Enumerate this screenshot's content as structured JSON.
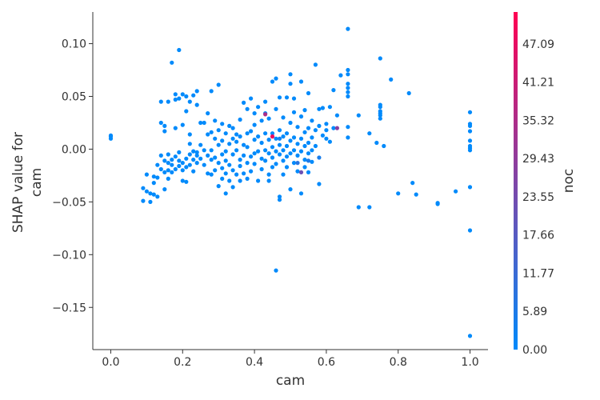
{
  "chart_data": {
    "type": "scatter",
    "title": "",
    "xlabel": "cam",
    "ylabel": "SHAP value for\ncam",
    "xlim": [
      -0.05,
      1.05
    ],
    "ylim": [
      -0.19,
      0.13
    ],
    "xticks": [
      0.0,
      0.2,
      0.4,
      0.6,
      0.8,
      1.0
    ],
    "xtick_labels": [
      "0.0",
      "0.2",
      "0.4",
      "0.6",
      "0.8",
      "1.0"
    ],
    "yticks": [
      0.1,
      0.05,
      0.0,
      -0.05,
      -0.1,
      -0.15
    ],
    "ytick_labels": [
      "0.10",
      "0.05",
      "0.00",
      "−0.05",
      "−0.10",
      "−0.15"
    ],
    "colorbar": {
      "label": "noc",
      "range": [
        0.0,
        52.0
      ],
      "ticks": [
        0.0,
        5.89,
        11.77,
        17.66,
        23.55,
        29.43,
        35.32,
        41.21,
        47.09
      ],
      "tick_labels": [
        "0.00",
        "5.89",
        "11.77",
        "17.66",
        "23.55",
        "29.43",
        "35.32",
        "41.21",
        "47.09"
      ],
      "color_low": "#008afb",
      "color_high": "#ff0052"
    },
    "grid": false,
    "points": [
      [
        0.0,
        0.013,
        0
      ],
      [
        0.0,
        0.01,
        0
      ],
      [
        0.0,
        0.012,
        0
      ],
      [
        0.09,
        -0.049,
        0
      ],
      [
        0.09,
        -0.037,
        0
      ],
      [
        0.1,
        -0.04,
        0
      ],
      [
        0.1,
        -0.024,
        0
      ],
      [
        0.11,
        -0.042,
        0
      ],
      [
        0.11,
        -0.05,
        0
      ],
      [
        0.12,
        -0.043,
        0
      ],
      [
        0.12,
        -0.032,
        0
      ],
      [
        0.12,
        -0.026,
        0
      ],
      [
        0.13,
        -0.045,
        0
      ],
      [
        0.13,
        -0.027,
        0
      ],
      [
        0.13,
        -0.015,
        0
      ],
      [
        0.14,
        0.045,
        0
      ],
      [
        0.14,
        0.025,
        0
      ],
      [
        0.14,
        -0.006,
        0
      ],
      [
        0.14,
        -0.019,
        0
      ],
      [
        0.15,
        -0.038,
        0
      ],
      [
        0.15,
        -0.022,
        0
      ],
      [
        0.15,
        -0.011,
        0
      ],
      [
        0.15,
        0.017,
        0
      ],
      [
        0.15,
        0.022,
        0
      ],
      [
        0.16,
        -0.013,
        0
      ],
      [
        0.16,
        -0.02,
        0
      ],
      [
        0.16,
        -0.028,
        0
      ],
      [
        0.16,
        0.045,
        0
      ],
      [
        0.16,
        -0.005,
        0
      ],
      [
        0.17,
        -0.015,
        0
      ],
      [
        0.17,
        -0.022,
        0
      ],
      [
        0.17,
        -0.01,
        0
      ],
      [
        0.17,
        0.082,
        0
      ],
      [
        0.18,
        0.052,
        0
      ],
      [
        0.18,
        0.047,
        0
      ],
      [
        0.18,
        0.02,
        0
      ],
      [
        0.18,
        -0.007,
        0
      ],
      [
        0.18,
        -0.019,
        0
      ],
      [
        0.19,
        0.094,
        0
      ],
      [
        0.19,
        -0.003,
        0
      ],
      [
        0.19,
        -0.016,
        0
      ],
      [
        0.19,
        0.048,
        0
      ],
      [
        0.19,
        -0.011,
        0
      ],
      [
        0.2,
        0.052,
        0
      ],
      [
        0.2,
        0.023,
        0
      ],
      [
        0.2,
        -0.013,
        0
      ],
      [
        0.2,
        -0.03,
        0
      ],
      [
        0.2,
        -0.02,
        0
      ],
      [
        0.21,
        0.036,
        0
      ],
      [
        0.21,
        -0.009,
        0
      ],
      [
        0.21,
        -0.017,
        0
      ],
      [
        0.21,
        -0.031,
        0
      ],
      [
        0.21,
        0.05,
        0
      ],
      [
        0.22,
        0.014,
        0
      ],
      [
        0.22,
        0.005,
        0
      ],
      [
        0.22,
        -0.005,
        0
      ],
      [
        0.22,
        -0.015,
        0
      ],
      [
        0.22,
        0.045,
        0
      ],
      [
        0.23,
        0.051,
        0
      ],
      [
        0.23,
        -0.002,
        0
      ],
      [
        0.23,
        -0.021,
        0
      ],
      [
        0.23,
        -0.01,
        0
      ],
      [
        0.24,
        0.055,
        0
      ],
      [
        0.24,
        0.042,
        0
      ],
      [
        0.24,
        -0.006,
        0
      ],
      [
        0.24,
        -0.013,
        0
      ],
      [
        0.24,
        -0.003,
        0
      ],
      [
        0.25,
        0.025,
        0
      ],
      [
        0.25,
        0.004,
        0
      ],
      [
        0.25,
        -0.009,
        0
      ],
      [
        0.26,
        -0.015,
        0
      ],
      [
        0.26,
        0.025,
        0
      ],
      [
        0.26,
        -0.001,
        0
      ],
      [
        0.27,
        0.034,
        0
      ],
      [
        0.27,
        0.014,
        0
      ],
      [
        0.27,
        -0.023,
        0
      ],
      [
        0.27,
        -0.006,
        0
      ],
      [
        0.28,
        0.055,
        0
      ],
      [
        0.28,
        0.016,
        0
      ],
      [
        0.28,
        -0.01,
        0
      ],
      [
        0.28,
        -0.001,
        0
      ],
      [
        0.28,
        -0.024,
        0
      ],
      [
        0.29,
        0.027,
        0
      ],
      [
        0.29,
        0.01,
        0
      ],
      [
        0.29,
        -0.008,
        0
      ],
      [
        0.29,
        -0.02,
        0
      ],
      [
        0.3,
        0.061,
        0
      ],
      [
        0.3,
        0.018,
        0
      ],
      [
        0.3,
        0.004,
        0
      ],
      [
        0.3,
        -0.013,
        0
      ],
      [
        0.3,
        -0.035,
        0
      ],
      [
        0.31,
        0.024,
        0
      ],
      [
        0.31,
        0.008,
        0
      ],
      [
        0.31,
        -0.005,
        0
      ],
      [
        0.31,
        -0.018,
        0
      ],
      [
        0.31,
        -0.028,
        0
      ],
      [
        0.32,
        0.015,
        0
      ],
      [
        0.32,
        -0.002,
        0
      ],
      [
        0.32,
        -0.011,
        0
      ],
      [
        0.32,
        -0.023,
        0
      ],
      [
        0.32,
        -0.042,
        0
      ],
      [
        0.33,
        0.022,
        0
      ],
      [
        0.33,
        0.005,
        0
      ],
      [
        0.33,
        -0.015,
        0
      ],
      [
        0.33,
        -0.03,
        0
      ],
      [
        0.34,
        0.02,
        0
      ],
      [
        0.34,
        0.01,
        0
      ],
      [
        0.34,
        -0.005,
        0
      ],
      [
        0.34,
        -0.02,
        0
      ],
      [
        0.34,
        -0.036,
        0
      ],
      [
        0.35,
        0.014,
        0
      ],
      [
        0.35,
        -0.001,
        0
      ],
      [
        0.35,
        -0.024,
        0
      ],
      [
        0.35,
        0.007,
        0
      ],
      [
        0.36,
        0.028,
        0
      ],
      [
        0.36,
        0.012,
        0
      ],
      [
        0.36,
        -0.01,
        0
      ],
      [
        0.36,
        -0.016,
        0
      ],
      [
        0.36,
        -0.03,
        0
      ],
      [
        0.37,
        0.044,
        0
      ],
      [
        0.37,
        0.004,
        0
      ],
      [
        0.37,
        -0.006,
        0
      ],
      [
        0.37,
        -0.023,
        0
      ],
      [
        0.38,
        0.015,
        0
      ],
      [
        0.38,
        0.002,
        0
      ],
      [
        0.38,
        -0.013,
        0
      ],
      [
        0.38,
        -0.028,
        0
      ],
      [
        0.38,
        0.038,
        0
      ],
      [
        0.39,
        0.048,
        0
      ],
      [
        0.39,
        0.017,
        0
      ],
      [
        0.39,
        -0.007,
        0
      ],
      [
        0.39,
        -0.021,
        0
      ],
      [
        0.4,
        0.023,
        0
      ],
      [
        0.4,
        0.009,
        0
      ],
      [
        0.4,
        -0.004,
        0
      ],
      [
        0.4,
        -0.014,
        0
      ],
      [
        0.4,
        0.034,
        0
      ],
      [
        0.41,
        0.04,
        0
      ],
      [
        0.41,
        0.012,
        0
      ],
      [
        0.41,
        -0.002,
        0
      ],
      [
        0.41,
        -0.03,
        0
      ],
      [
        0.42,
        0.027,
        0
      ],
      [
        0.42,
        0.006,
        0
      ],
      [
        0.42,
        -0.009,
        0
      ],
      [
        0.42,
        -0.019,
        0
      ],
      [
        0.43,
        0.045,
        0
      ],
      [
        0.43,
        0.015,
        0
      ],
      [
        0.43,
        -0.001,
        0
      ],
      [
        0.43,
        -0.011,
        0
      ],
      [
        0.43,
        0.034,
        0
      ],
      [
        0.44,
        0.029,
        0
      ],
      [
        0.44,
        0.009,
        0
      ],
      [
        0.44,
        -0.004,
        0
      ],
      [
        0.44,
        -0.024,
        0
      ],
      [
        0.44,
        -0.03,
        0
      ],
      [
        0.45,
        0.064,
        0
      ],
      [
        0.45,
        0.015,
        0
      ],
      [
        0.45,
        0.002,
        0
      ],
      [
        0.45,
        -0.008,
        0
      ],
      [
        0.45,
        -0.017,
        0
      ],
      [
        0.46,
        0.067,
        0
      ],
      [
        0.46,
        0.038,
        0
      ],
      [
        0.46,
        0.01,
        0
      ],
      [
        0.46,
        -0.002,
        0
      ],
      [
        0.46,
        -0.014,
        0
      ],
      [
        0.46,
        -0.115,
        0
      ],
      [
        0.47,
        0.049,
        0
      ],
      [
        0.47,
        0.018,
        0
      ],
      [
        0.47,
        0.004,
        0
      ],
      [
        0.47,
        -0.005,
        0
      ],
      [
        0.47,
        -0.045,
        0
      ],
      [
        0.47,
        -0.048,
        0
      ],
      [
        0.48,
        0.03,
        0
      ],
      [
        0.48,
        0.012,
        0
      ],
      [
        0.48,
        -0.001,
        0
      ],
      [
        0.48,
        -0.011,
        0
      ],
      [
        0.48,
        -0.024,
        0
      ],
      [
        0.49,
        0.049,
        0
      ],
      [
        0.49,
        0.015,
        0
      ],
      [
        0.49,
        0.003,
        0
      ],
      [
        0.49,
        -0.007,
        0
      ],
      [
        0.49,
        -0.017,
        0
      ],
      [
        0.5,
        0.071,
        0
      ],
      [
        0.5,
        0.062,
        0
      ],
      [
        0.5,
        0.025,
        0
      ],
      [
        0.5,
        0.008,
        0
      ],
      [
        0.5,
        -0.004,
        0
      ],
      [
        0.5,
        -0.038,
        0
      ],
      [
        0.51,
        0.048,
        0
      ],
      [
        0.51,
        0.035,
        0
      ],
      [
        0.51,
        0.011,
        0
      ],
      [
        0.51,
        -0.001,
        0
      ],
      [
        0.51,
        -0.013,
        0
      ],
      [
        0.52,
        0.021,
        0
      ],
      [
        0.52,
        0.005,
        0
      ],
      [
        0.52,
        -0.006,
        0
      ],
      [
        0.52,
        -0.021,
        0
      ],
      [
        0.53,
        0.064,
        0
      ],
      [
        0.53,
        0.031,
        0
      ],
      [
        0.53,
        0.01,
        0
      ],
      [
        0.53,
        -0.002,
        0
      ],
      [
        0.53,
        -0.042,
        0
      ],
      [
        0.54,
        0.037,
        0
      ],
      [
        0.54,
        0.016,
        0
      ],
      [
        0.54,
        0.003,
        0
      ],
      [
        0.54,
        -0.01,
        0
      ],
      [
        0.54,
        -0.017,
        0
      ],
      [
        0.55,
        0.053,
        0
      ],
      [
        0.55,
        0.02,
        0
      ],
      [
        0.55,
        0.006,
        0
      ],
      [
        0.55,
        -0.004,
        0
      ],
      [
        0.55,
        -0.022,
        0
      ],
      [
        0.56,
        0.027,
        0
      ],
      [
        0.56,
        0.011,
        0
      ],
      [
        0.56,
        -0.001,
        0
      ],
      [
        0.56,
        -0.012,
        0
      ],
      [
        0.57,
        0.08,
        0
      ],
      [
        0.57,
        0.018,
        0
      ],
      [
        0.57,
        0.003,
        0
      ],
      [
        0.58,
        0.038,
        0
      ],
      [
        0.58,
        0.022,
        0
      ],
      [
        0.58,
        -0.033,
        0
      ],
      [
        0.59,
        0.039,
        0
      ],
      [
        0.59,
        0.013,
        0
      ],
      [
        0.6,
        0.024,
        0
      ],
      [
        0.6,
        0.018,
        0
      ],
      [
        0.6,
        0.01,
        0
      ],
      [
        0.61,
        0.04,
        0
      ],
      [
        0.61,
        0.007,
        0
      ],
      [
        0.62,
        0.056,
        0
      ],
      [
        0.62,
        0.02,
        0
      ],
      [
        0.63,
        0.032,
        0
      ],
      [
        0.64,
        0.07,
        0
      ],
      [
        0.66,
        0.114,
        0
      ],
      [
        0.66,
        0.075,
        0
      ],
      [
        0.66,
        0.071,
        0
      ],
      [
        0.66,
        0.062,
        0
      ],
      [
        0.66,
        0.058,
        0
      ],
      [
        0.66,
        0.054,
        0
      ],
      [
        0.66,
        0.05,
        0
      ],
      [
        0.66,
        0.021,
        0
      ],
      [
        0.66,
        0.011,
        0
      ],
      [
        0.69,
        0.032,
        0
      ],
      [
        0.69,
        -0.055,
        0
      ],
      [
        0.72,
        0.015,
        0
      ],
      [
        0.72,
        -0.055,
        0
      ],
      [
        0.74,
        0.006,
        0
      ],
      [
        0.75,
        0.086,
        0
      ],
      [
        0.75,
        0.042,
        0
      ],
      [
        0.75,
        0.04,
        0
      ],
      [
        0.75,
        0.036,
        0
      ],
      [
        0.75,
        0.034,
        0
      ],
      [
        0.75,
        0.032,
        0
      ],
      [
        0.75,
        0.029,
        0
      ],
      [
        0.76,
        0.003,
        0
      ],
      [
        0.78,
        0.066,
        0
      ],
      [
        0.8,
        -0.042,
        0
      ],
      [
        0.83,
        0.053,
        0
      ],
      [
        0.84,
        -0.032,
        0
      ],
      [
        0.85,
        -0.043,
        0
      ],
      [
        0.91,
        -0.052,
        0
      ],
      [
        0.91,
        -0.051,
        0
      ],
      [
        0.96,
        -0.04,
        0
      ],
      [
        1.0,
        0.035,
        0
      ],
      [
        1.0,
        0.024,
        0
      ],
      [
        1.0,
        0.022,
        0
      ],
      [
        1.0,
        0.017,
        0
      ],
      [
        1.0,
        0.008,
        0
      ],
      [
        1.0,
        0.003,
        0
      ],
      [
        1.0,
        0.001,
        0
      ],
      [
        1.0,
        -0.001,
        0
      ],
      [
        1.0,
        -0.036,
        0
      ],
      [
        1.0,
        -0.077,
        0
      ],
      [
        1.0,
        -0.177,
        0
      ],
      [
        0.52,
        -0.013,
        8
      ],
      [
        0.55,
        -0.011,
        6
      ],
      [
        0.58,
        -0.008,
        5
      ],
      [
        0.63,
        0.02,
        28
      ],
      [
        0.53,
        -0.022,
        22
      ],
      [
        0.43,
        0.033,
        35
      ],
      [
        0.45,
        0.012,
        48
      ],
      [
        0.47,
        0.01,
        3
      ]
    ]
  }
}
